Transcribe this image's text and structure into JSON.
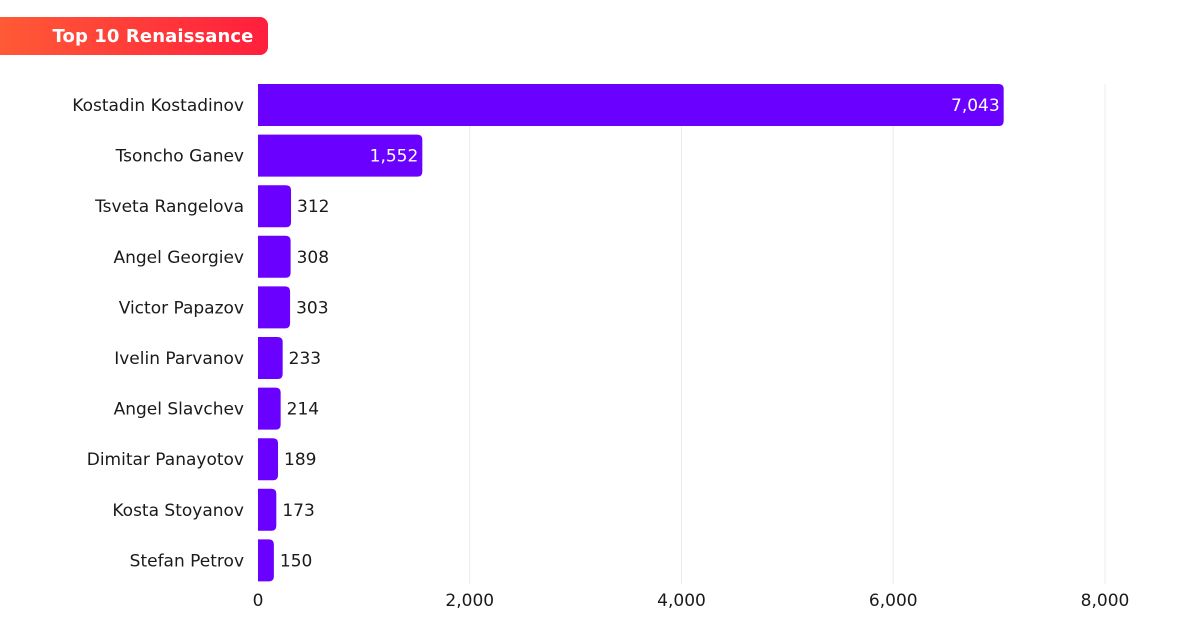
{
  "title": "Top 10 Renaissance",
  "colors": {
    "bar": "#6a00ff",
    "title_gradient_start": "#ff5a36",
    "title_gradient_end": "#ff1f3d",
    "inside_label": "#ffffff",
    "outside_label": "#1a1a1a",
    "grid": "#ececec"
  },
  "chart_data": {
    "type": "bar",
    "orientation": "horizontal",
    "title": "Top 10 Renaissance",
    "categories": [
      "Kostadin Kostadinov",
      "Tsoncho Ganev",
      "Tsveta Rangelova",
      "Angel Georgiev",
      "Victor Papazov",
      "Ivelin Parvanov",
      "Angel Slavchev",
      "Dimitar Panayotov",
      "Kosta Stoyanov",
      "Stefan Petrov"
    ],
    "values": [
      7043,
      1552,
      312,
      308,
      303,
      233,
      214,
      189,
      173,
      150
    ],
    "value_labels": [
      "7,043",
      "1,552",
      "312",
      "308",
      "303",
      "233",
      "214",
      "189",
      "173",
      "150"
    ],
    "xlim": [
      0,
      8000
    ],
    "xticks": [
      0,
      2000,
      4000,
      6000,
      8000
    ],
    "xtick_labels": [
      "0",
      "2,000",
      "4,000",
      "6,000",
      "8,000"
    ],
    "xlabel": "",
    "ylabel": "",
    "grid": true,
    "legend": "none"
  }
}
